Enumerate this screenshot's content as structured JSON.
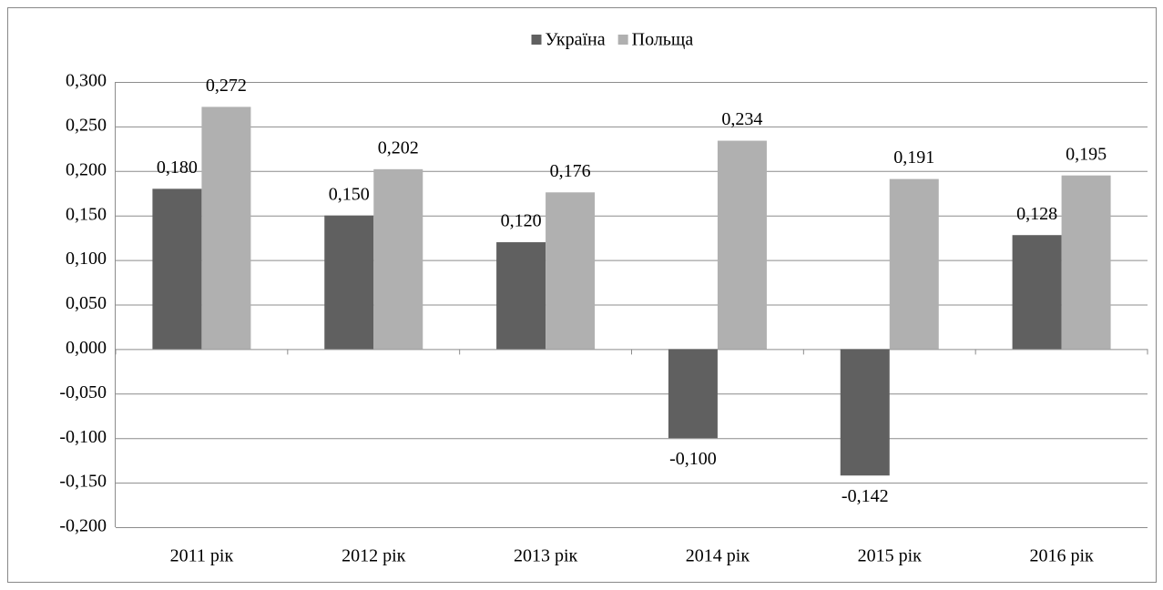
{
  "chart_data": {
    "type": "bar",
    "categories": [
      "2011 рік",
      "2012 рік",
      "2013 рік",
      "2014 рік",
      "2015 рік",
      "2016 рік"
    ],
    "series": [
      {
        "name": "Україна",
        "color": "#606060",
        "values": [
          0.18,
          0.15,
          0.12,
          -0.1,
          -0.142,
          0.128
        ],
        "value_labels": [
          "0,180",
          "0,150",
          "0,120",
          "-0,100",
          "-0,142",
          "0,128"
        ]
      },
      {
        "name": "Польща",
        "color": "#b0b0b0",
        "values": [
          0.272,
          0.202,
          0.176,
          0.234,
          0.191,
          0.195
        ],
        "value_labels": [
          "0,272",
          "0,202",
          "0,176",
          "0,234",
          "0,191",
          "0,195"
        ]
      }
    ],
    "ylim": [
      -0.2,
      0.3
    ],
    "yticks": [
      {
        "value": -0.2,
        "label": "-0,200"
      },
      {
        "value": -0.15,
        "label": "-0,150"
      },
      {
        "value": -0.1,
        "label": "-0,100"
      },
      {
        "value": -0.05,
        "label": "-0,050"
      },
      {
        "value": 0,
        "label": "0,000"
      },
      {
        "value": 0.05,
        "label": "0,050"
      },
      {
        "value": 0.1,
        "label": "0,100"
      },
      {
        "value": 0.15,
        "label": "0,150"
      },
      {
        "value": 0.2,
        "label": "0,200"
      },
      {
        "value": 0.25,
        "label": "0,250"
      },
      {
        "value": 0.3,
        "label": "0,300"
      }
    ],
    "grid": true,
    "legend": "top"
  }
}
